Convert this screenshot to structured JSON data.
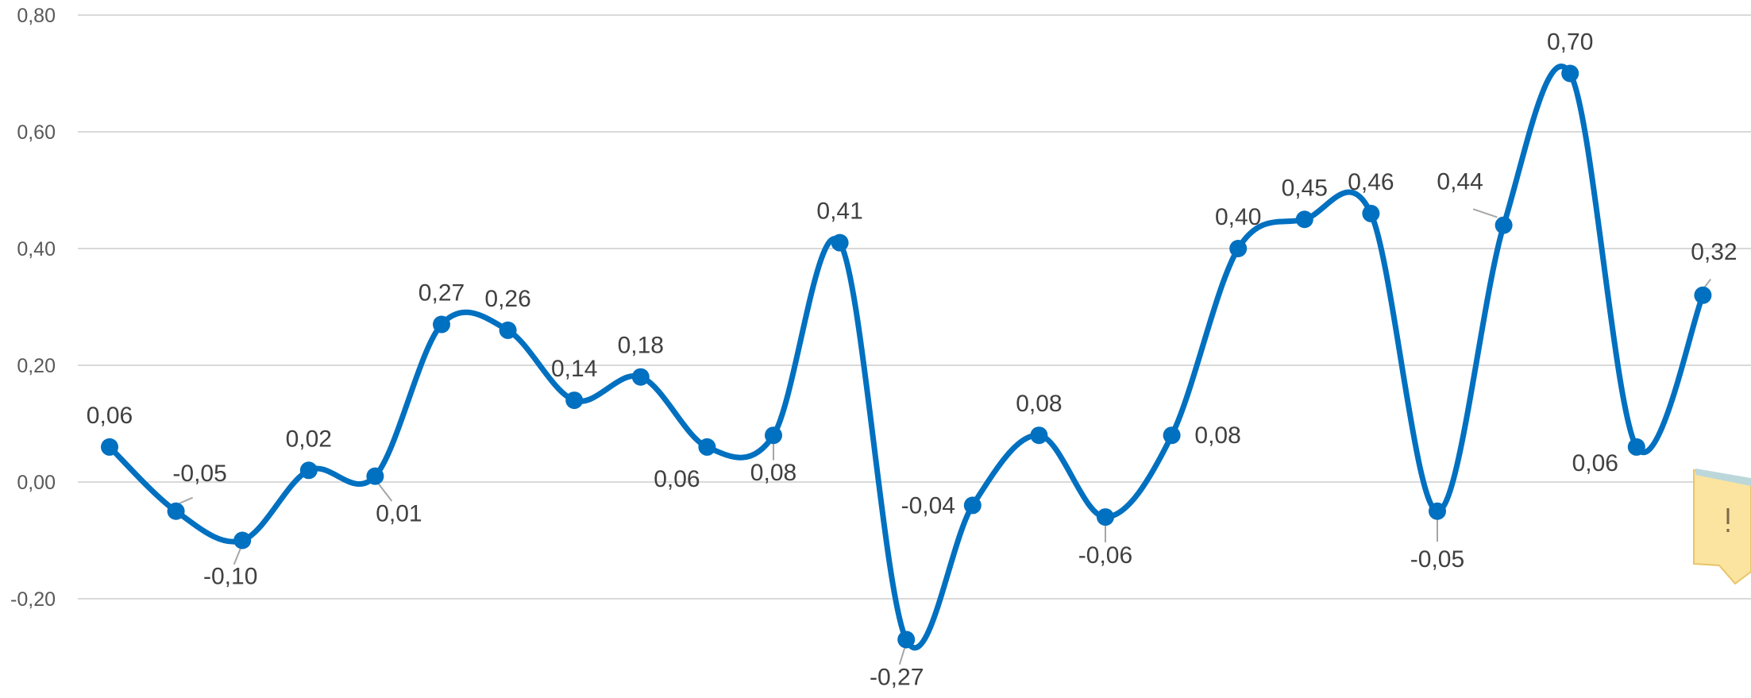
{
  "chart_data": {
    "type": "line",
    "title": "",
    "xlabel": "",
    "ylabel": "",
    "ylim": [
      -0.3,
      0.8
    ],
    "y_ticks": [
      "0,80",
      "0,60",
      "0,40",
      "0,20",
      "0,00",
      "-0,20"
    ],
    "y_tick_values": [
      0.8,
      0.6,
      0.4,
      0.2,
      0.0,
      -0.2
    ],
    "grid": true,
    "legend": "none",
    "smooth": true,
    "color": "#0070c0",
    "x": [
      1,
      2,
      3,
      4,
      5,
      6,
      7,
      8,
      9,
      10,
      11,
      12,
      13,
      14,
      15,
      16,
      17,
      18,
      19,
      20,
      21,
      22,
      23,
      24,
      25
    ],
    "values": [
      0.06,
      -0.05,
      -0.1,
      0.02,
      0.01,
      0.27,
      0.26,
      0.14,
      0.18,
      0.06,
      0.08,
      0.41,
      -0.27,
      -0.04,
      0.08,
      -0.06,
      0.08,
      0.4,
      0.45,
      0.46,
      -0.05,
      0.44,
      0.7,
      0.06,
      0.32
    ],
    "data_labels": [
      "0,06",
      "-0,05",
      "-0,10",
      "0,02",
      "0,01",
      "0,27",
      "0,26",
      "0,14",
      "0,18",
      "0,06",
      "0,08",
      "0,41",
      "-0,27",
      "-0,04",
      "0,08",
      "-0,06",
      "0,08",
      "0,40",
      "0,45",
      "0,46",
      "-0,05",
      "0,44",
      "0,70",
      "0,06",
      "0,32"
    ]
  }
}
